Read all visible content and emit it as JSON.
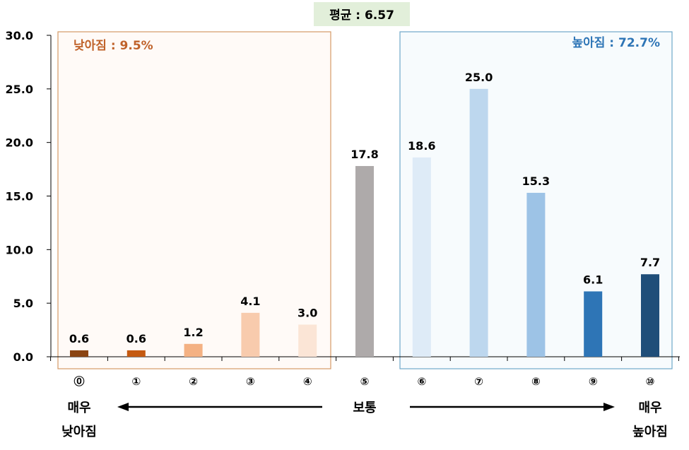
{
  "chart_data": {
    "type": "bar",
    "categories": [
      "⓪",
      "①",
      "②",
      "③",
      "④",
      "⑤",
      "⑥",
      "⑦",
      "⑧",
      "⑨",
      "⑩"
    ],
    "values": [
      0.6,
      0.6,
      1.2,
      4.1,
      3.0,
      17.8,
      18.6,
      25.0,
      15.3,
      6.1,
      7.7
    ],
    "value_labels": [
      "0.6",
      "0.6",
      "1.2",
      "4.1",
      "3.0",
      "17.8",
      "18.6",
      "25.0",
      "15.3",
      "6.1",
      "7.7"
    ],
    "bar_colors": [
      "#8b4513",
      "#c55a11",
      "#f4b183",
      "#f8cbad",
      "#fbe5d6",
      "#aeaaaa",
      "#deebf7",
      "#bdd7ee",
      "#9dc3e6",
      "#2e75b6",
      "#1f4e79"
    ],
    "ylim": [
      0,
      30
    ],
    "yticks": [
      "0.0",
      "5.0",
      "10.0",
      "15.0",
      "20.0",
      "25.0",
      "30.0"
    ],
    "ytick_values": [
      0,
      5,
      10,
      15,
      20,
      25,
      30
    ],
    "average_label": "평균 : 6.57",
    "low_group_label": "낮아짐 : 9.5%",
    "high_group_label": "높아짐 : 72.7%",
    "left_end_label": [
      "매우",
      "낮아짐"
    ],
    "center_label": "보통",
    "right_end_label": [
      "매우",
      "높아짐"
    ]
  }
}
